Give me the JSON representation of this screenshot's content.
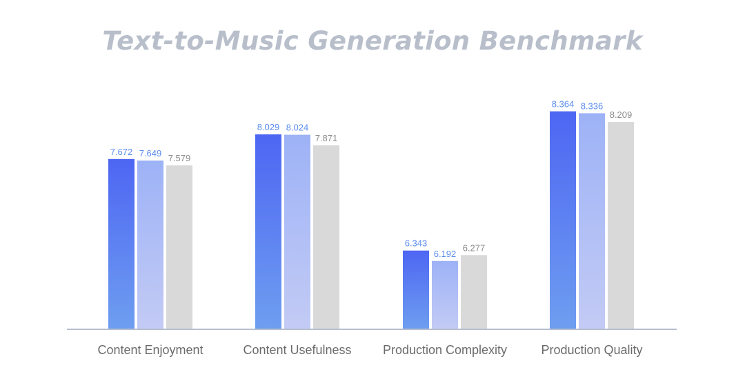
{
  "chart_data": {
    "type": "bar",
    "title": "Text-to-Music Generation Benchmark",
    "xlabel": "",
    "ylabel": "",
    "categories": [
      "Content Enjoyment",
      "Content Usefulness",
      "Production Complexity",
      "Production Quality"
    ],
    "series": [
      {
        "values": [
          7.672,
          8.029,
          6.343,
          8.364
        ],
        "label_color": "#5b8def"
      },
      {
        "values": [
          7.649,
          8.024,
          6.192,
          8.336
        ],
        "label_color": "#5b8def"
      },
      {
        "values": [
          7.579,
          7.871,
          6.277,
          8.209
        ],
        "label_color": "#8a8a8a"
      }
    ],
    "ylim": [
      5.2,
      8.64
    ],
    "grid": false,
    "legend": "none",
    "colors": {
      "series_1_top": "#4e66f3",
      "series_1_bottom": "#6e9ef0",
      "series_2_top": "#9db2f6",
      "series_2_bottom": "#c3cbf5",
      "series_3": "#d9d9d9",
      "axis": "#b6bfcf",
      "category_label": "#6b6b6b"
    }
  }
}
